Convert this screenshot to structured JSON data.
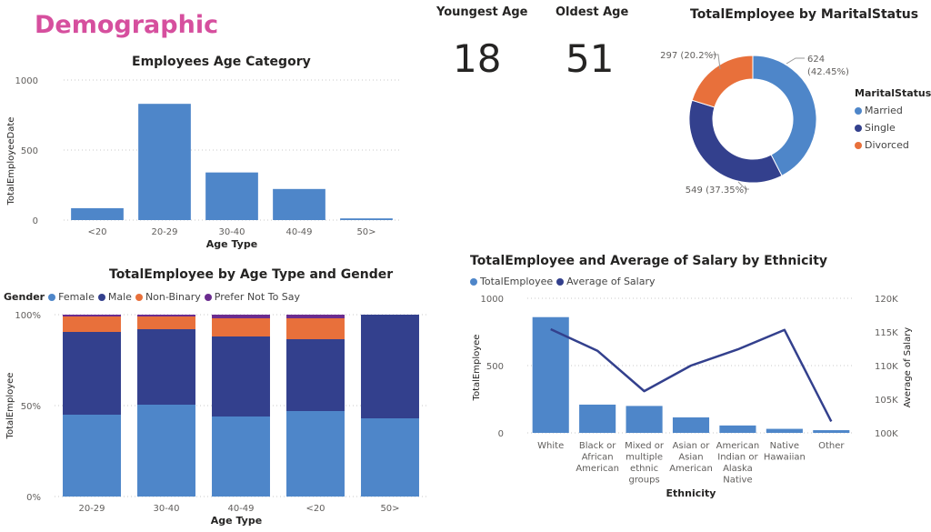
{
  "page": {
    "title": "Demographic"
  },
  "cards": {
    "youngest": {
      "label": "Youngest Age",
      "value": "18"
    },
    "oldest": {
      "label": "Oldest Age",
      "value": "51"
    }
  },
  "colors": {
    "blue": "#4e86c9",
    "navy": "#33408d",
    "orange": "#e8703b",
    "purple": "#6b2c8f",
    "pink": "#d64f9e"
  },
  "chart_data": [
    {
      "id": "age_category",
      "type": "bar",
      "title": "Employees Age Category",
      "xlabel": "Age Type",
      "ylabel": "TotalEmployeeDate",
      "categories": [
        "<20",
        "20-29",
        "30-40",
        "40-49",
        "50>"
      ],
      "values": [
        85,
        830,
        340,
        222,
        12
      ],
      "yticks": [
        "0",
        "500",
        "1000"
      ],
      "ylim": [
        0,
        1000
      ],
      "grid": true
    },
    {
      "id": "marital_status",
      "type": "pie",
      "title": "TotalEmployee by MaritalStatus",
      "legend_title": "MaritalStatus",
      "slices": [
        {
          "name": "Married",
          "value": 624,
          "label": "624 (42.45%)",
          "label_line1": "624",
          "label_line2": "(42.45%)"
        },
        {
          "name": "Single",
          "value": 549,
          "label": "549 (37.35%)"
        },
        {
          "name": "Divorced",
          "value": 297,
          "label": "297 (20.2%)"
        }
      ],
      "legend_position": "right"
    },
    {
      "id": "age_gender",
      "type": "bar",
      "stacked": "percent",
      "title": "TotalEmployee by Age Type and Gender",
      "xlabel": "Age Type",
      "ylabel": "TotalEmployee",
      "legend_title": "Gender",
      "categories": [
        "20-29",
        "30-40",
        "40-49",
        "<20",
        "50>"
      ],
      "series": [
        {
          "name": "Female",
          "values": [
            45,
            50.5,
            44,
            47,
            43
          ]
        },
        {
          "name": "Male",
          "values": [
            45.5,
            41.5,
            44,
            39.5,
            57
          ]
        },
        {
          "name": "Non-Binary",
          "values": [
            8.5,
            7,
            10,
            11.5,
            0
          ]
        },
        {
          "name": "Prefer Not To Say",
          "values": [
            1,
            1,
            2,
            2,
            0
          ]
        }
      ],
      "yticks": [
        "0%",
        "50%",
        "100%"
      ],
      "legend_position": "top-left"
    },
    {
      "id": "ethnicity",
      "type": "bar",
      "title": "TotalEmployee and Average of Salary by Ethnicity",
      "xlabel": "Ethnicity",
      "ylabel": "TotalEmployee",
      "y2label": "Average of Salary",
      "categories": [
        [
          "White"
        ],
        [
          "Black or",
          "African",
          "American"
        ],
        [
          "Mixed or",
          "multiple",
          "ethnic",
          "groups"
        ],
        [
          "Asian or",
          "Asian",
          "American"
        ],
        [
          "American",
          "Indian or",
          "Alaska",
          "Native"
        ],
        [
          "Native",
          "Hawaiian"
        ],
        [
          "Other"
        ]
      ],
      "series": [
        {
          "name": "TotalEmployee",
          "type": "bar",
          "values": [
            860,
            210,
            200,
            115,
            55,
            30,
            20
          ]
        },
        {
          "name": "Average of Salary",
          "type": "line",
          "values": [
            115400,
            112200,
            106200,
            110000,
            112400,
            115300,
            101700
          ]
        }
      ],
      "yticks": [
        "0",
        "500",
        "1000"
      ],
      "ylim": [
        0,
        1000
      ],
      "y2ticks": [
        "100K",
        "105K",
        "110K",
        "115K",
        "120K"
      ],
      "y2lim": [
        100000,
        120000
      ],
      "legend_position": "top-left"
    }
  ]
}
